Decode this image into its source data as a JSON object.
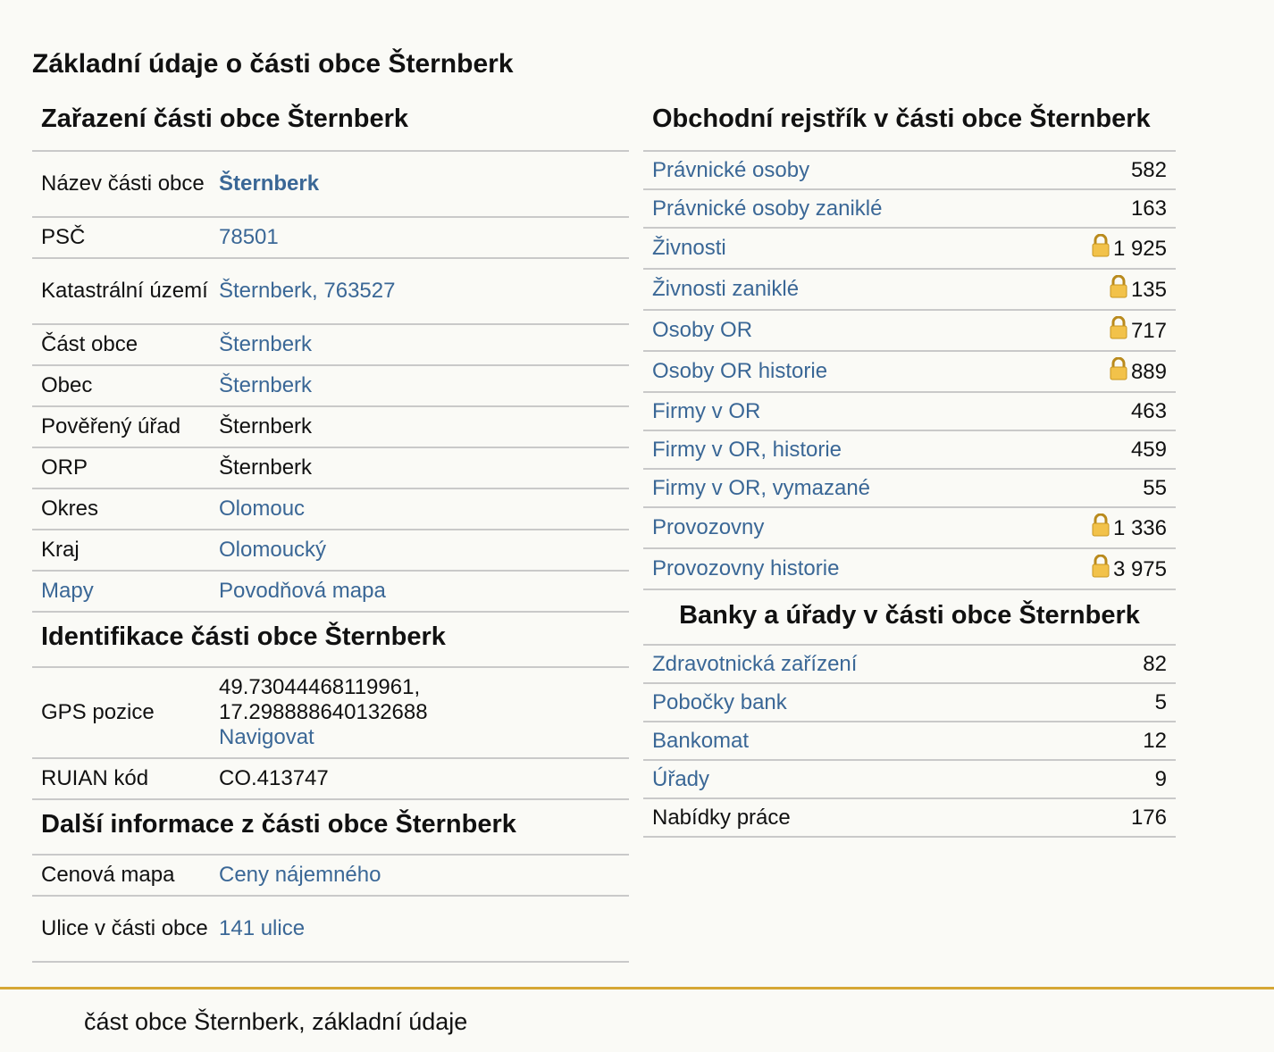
{
  "page": {
    "title": "Základní údaje o části obce Šternberk"
  },
  "zarazeni": {
    "title": "Zařazení části obce Šternberk",
    "rows": [
      {
        "label": "Název části obce",
        "value": "Šternberk"
      },
      {
        "label": "PSČ",
        "value": "78501"
      },
      {
        "label": "Katastrální území",
        "value": "Šternberk, 763527"
      },
      {
        "label": "Část obce",
        "value": "Šternberk"
      },
      {
        "label": "Obec",
        "value": "Šternberk"
      },
      {
        "label": "Pověřený úřad",
        "value": "Šternberk"
      },
      {
        "label": "ORP",
        "value": "Šternberk"
      },
      {
        "label": "Okres",
        "value": "Olomouc"
      },
      {
        "label": "Kraj",
        "value": "Olomoucký"
      },
      {
        "label": "Mapy",
        "value": "Povodňová mapa"
      }
    ]
  },
  "identifikace": {
    "title": "Identifikace části obce Šternberk",
    "gps_label": "GPS pozice",
    "gps_line1": "49.73044468119961,",
    "gps_line2": "17.298888640132688",
    "gps_nav": "Navigovat",
    "ruian_label": "RUIAN kód",
    "ruian_value": "CO.413747"
  },
  "dalsi": {
    "title": "Další informace z části obce Šternberk",
    "rows": [
      {
        "label": "Cenová mapa",
        "value": "Ceny nájemného"
      },
      {
        "label": "Ulice v části obce",
        "value": "141 ulice"
      }
    ]
  },
  "rejstrik": {
    "title": "Obchodní rejstřík v části obce Šternberk",
    "rows": [
      {
        "label": "Právnické osoby",
        "value": "582",
        "locked": false
      },
      {
        "label": "Právnické osoby zaniklé",
        "value": "163",
        "locked": false
      },
      {
        "label": "Živnosti",
        "value": "1 925",
        "locked": true
      },
      {
        "label": "Živnosti zaniklé",
        "value": "135",
        "locked": true
      },
      {
        "label": "Osoby OR",
        "value": "717",
        "locked": true
      },
      {
        "label": "Osoby OR historie",
        "value": "889",
        "locked": true
      },
      {
        "label": "Firmy v OR",
        "value": "463",
        "locked": false
      },
      {
        "label": "Firmy v OR, historie",
        "value": "459",
        "locked": false
      },
      {
        "label": "Firmy v OR, vymazané",
        "value": "55",
        "locked": false
      },
      {
        "label": "Provozovny",
        "value": "1 336",
        "locked": true
      },
      {
        "label": "Provozovny historie",
        "value": "3 975",
        "locked": true
      }
    ]
  },
  "banky": {
    "title": "Banky a úřady v části obce Šternberk",
    "rows": [
      {
        "label": "Zdravotnická zařízení",
        "value": "82"
      },
      {
        "label": "Pobočky bank",
        "value": "5"
      },
      {
        "label": "Bankomat",
        "value": "12"
      },
      {
        "label": "Úřady",
        "value": "9"
      },
      {
        "label": "Nabídky práce",
        "value": "176"
      }
    ]
  },
  "footer": {
    "text": "část obce Šternberk, základní údaje"
  },
  "colors": {
    "link": "#3a6796",
    "accent": "#d6a735",
    "divider": "#c9c9c9",
    "background": "#fafaf6"
  },
  "icons": {
    "lock": "lock-icon"
  }
}
